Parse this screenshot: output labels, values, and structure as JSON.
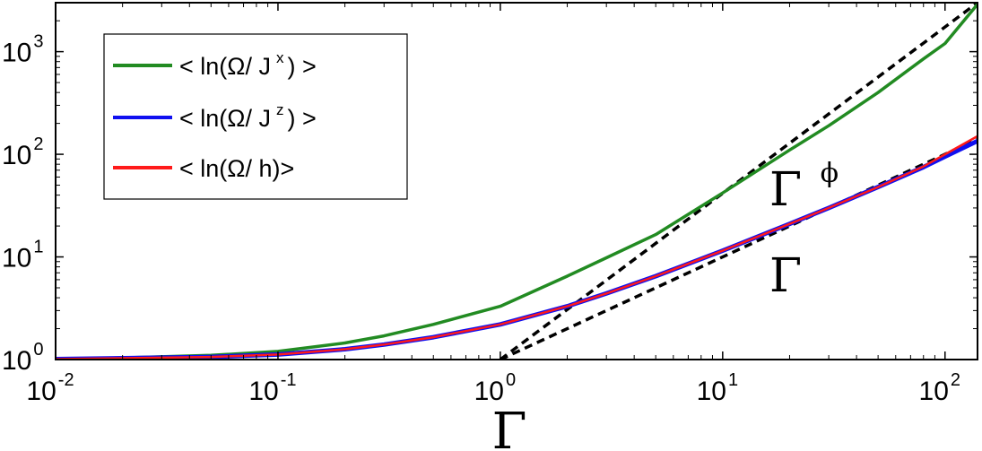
{
  "chart_data": {
    "type": "line",
    "xscale": "log",
    "yscale": "log",
    "xlim": [
      0.01,
      140
    ],
    "ylim": [
      1,
      3000
    ],
    "xlabel": "Γ",
    "ylabel": "",
    "grid": false,
    "legend_position": "top-left",
    "x_ticks": [
      {
        "value": 0.01,
        "base": "10",
        "exp": "-2"
      },
      {
        "value": 0.1,
        "base": "10",
        "exp": "-1"
      },
      {
        "value": 1,
        "base": "10",
        "exp": "0"
      },
      {
        "value": 10,
        "base": "10",
        "exp": "1"
      },
      {
        "value": 100,
        "base": "10",
        "exp": "2"
      }
    ],
    "y_ticks": [
      {
        "value": 1,
        "base": "10",
        "exp": "0"
      },
      {
        "value": 10,
        "base": "10",
        "exp": "1"
      },
      {
        "value": 100,
        "base": "10",
        "exp": "2"
      },
      {
        "value": 1000,
        "base": "10",
        "exp": "3"
      }
    ],
    "series": [
      {
        "name": "< ln(Ω/ J",
        "name_sup": "x",
        "name_end": ") >",
        "color": "#228b22",
        "width": 3.5,
        "x": [
          0.01,
          0.02,
          0.05,
          0.1,
          0.2,
          0.3,
          0.5,
          1,
          2,
          3,
          5,
          10,
          20,
          30,
          50,
          80,
          100,
          140
        ],
        "y": [
          1.01,
          1.04,
          1.1,
          1.2,
          1.45,
          1.7,
          2.2,
          3.3,
          6.5,
          9.8,
          16.5,
          42,
          110,
          190,
          400,
          850,
          1200,
          2900
        ]
      },
      {
        "name": "< ln(Ω/ J",
        "name_sup": "z",
        "name_end": ") >",
        "color": "#1010f0",
        "width": 5,
        "x": [
          0.01,
          0.02,
          0.05,
          0.1,
          0.2,
          0.3,
          0.5,
          1,
          2,
          3,
          5,
          10,
          20,
          30,
          50,
          80,
          100,
          140
        ],
        "y": [
          1.01,
          1.03,
          1.06,
          1.12,
          1.26,
          1.4,
          1.65,
          2.2,
          3.3,
          4.4,
          6.5,
          11.5,
          21,
          30,
          48,
          75,
          95,
          135
        ]
      },
      {
        "name": "< ln(Ω/ h)>",
        "name_sup": "",
        "name_end": "",
        "color": "#ff1a1a",
        "width": 2.5,
        "x": [
          0.01,
          0.02,
          0.05,
          0.1,
          0.2,
          0.3,
          0.5,
          1,
          2,
          3,
          5,
          10,
          20,
          30,
          50,
          80,
          100,
          140
        ],
        "y": [
          1.01,
          1.03,
          1.06,
          1.12,
          1.26,
          1.4,
          1.65,
          2.2,
          3.3,
          4.4,
          6.5,
          11.5,
          21,
          30,
          48,
          76,
          100,
          150
        ]
      }
    ],
    "reference_lines": [
      {
        "label": "Γ",
        "label_sup": "ϕ",
        "style": "dashed",
        "color": "#000000",
        "x": [
          1,
          140
        ],
        "y": [
          1,
          3000
        ]
      },
      {
        "label": "Γ",
        "label_sup": "",
        "style": "dashed",
        "color": "#000000",
        "x": [
          1,
          140
        ],
        "y": [
          1,
          140
        ]
      }
    ]
  }
}
